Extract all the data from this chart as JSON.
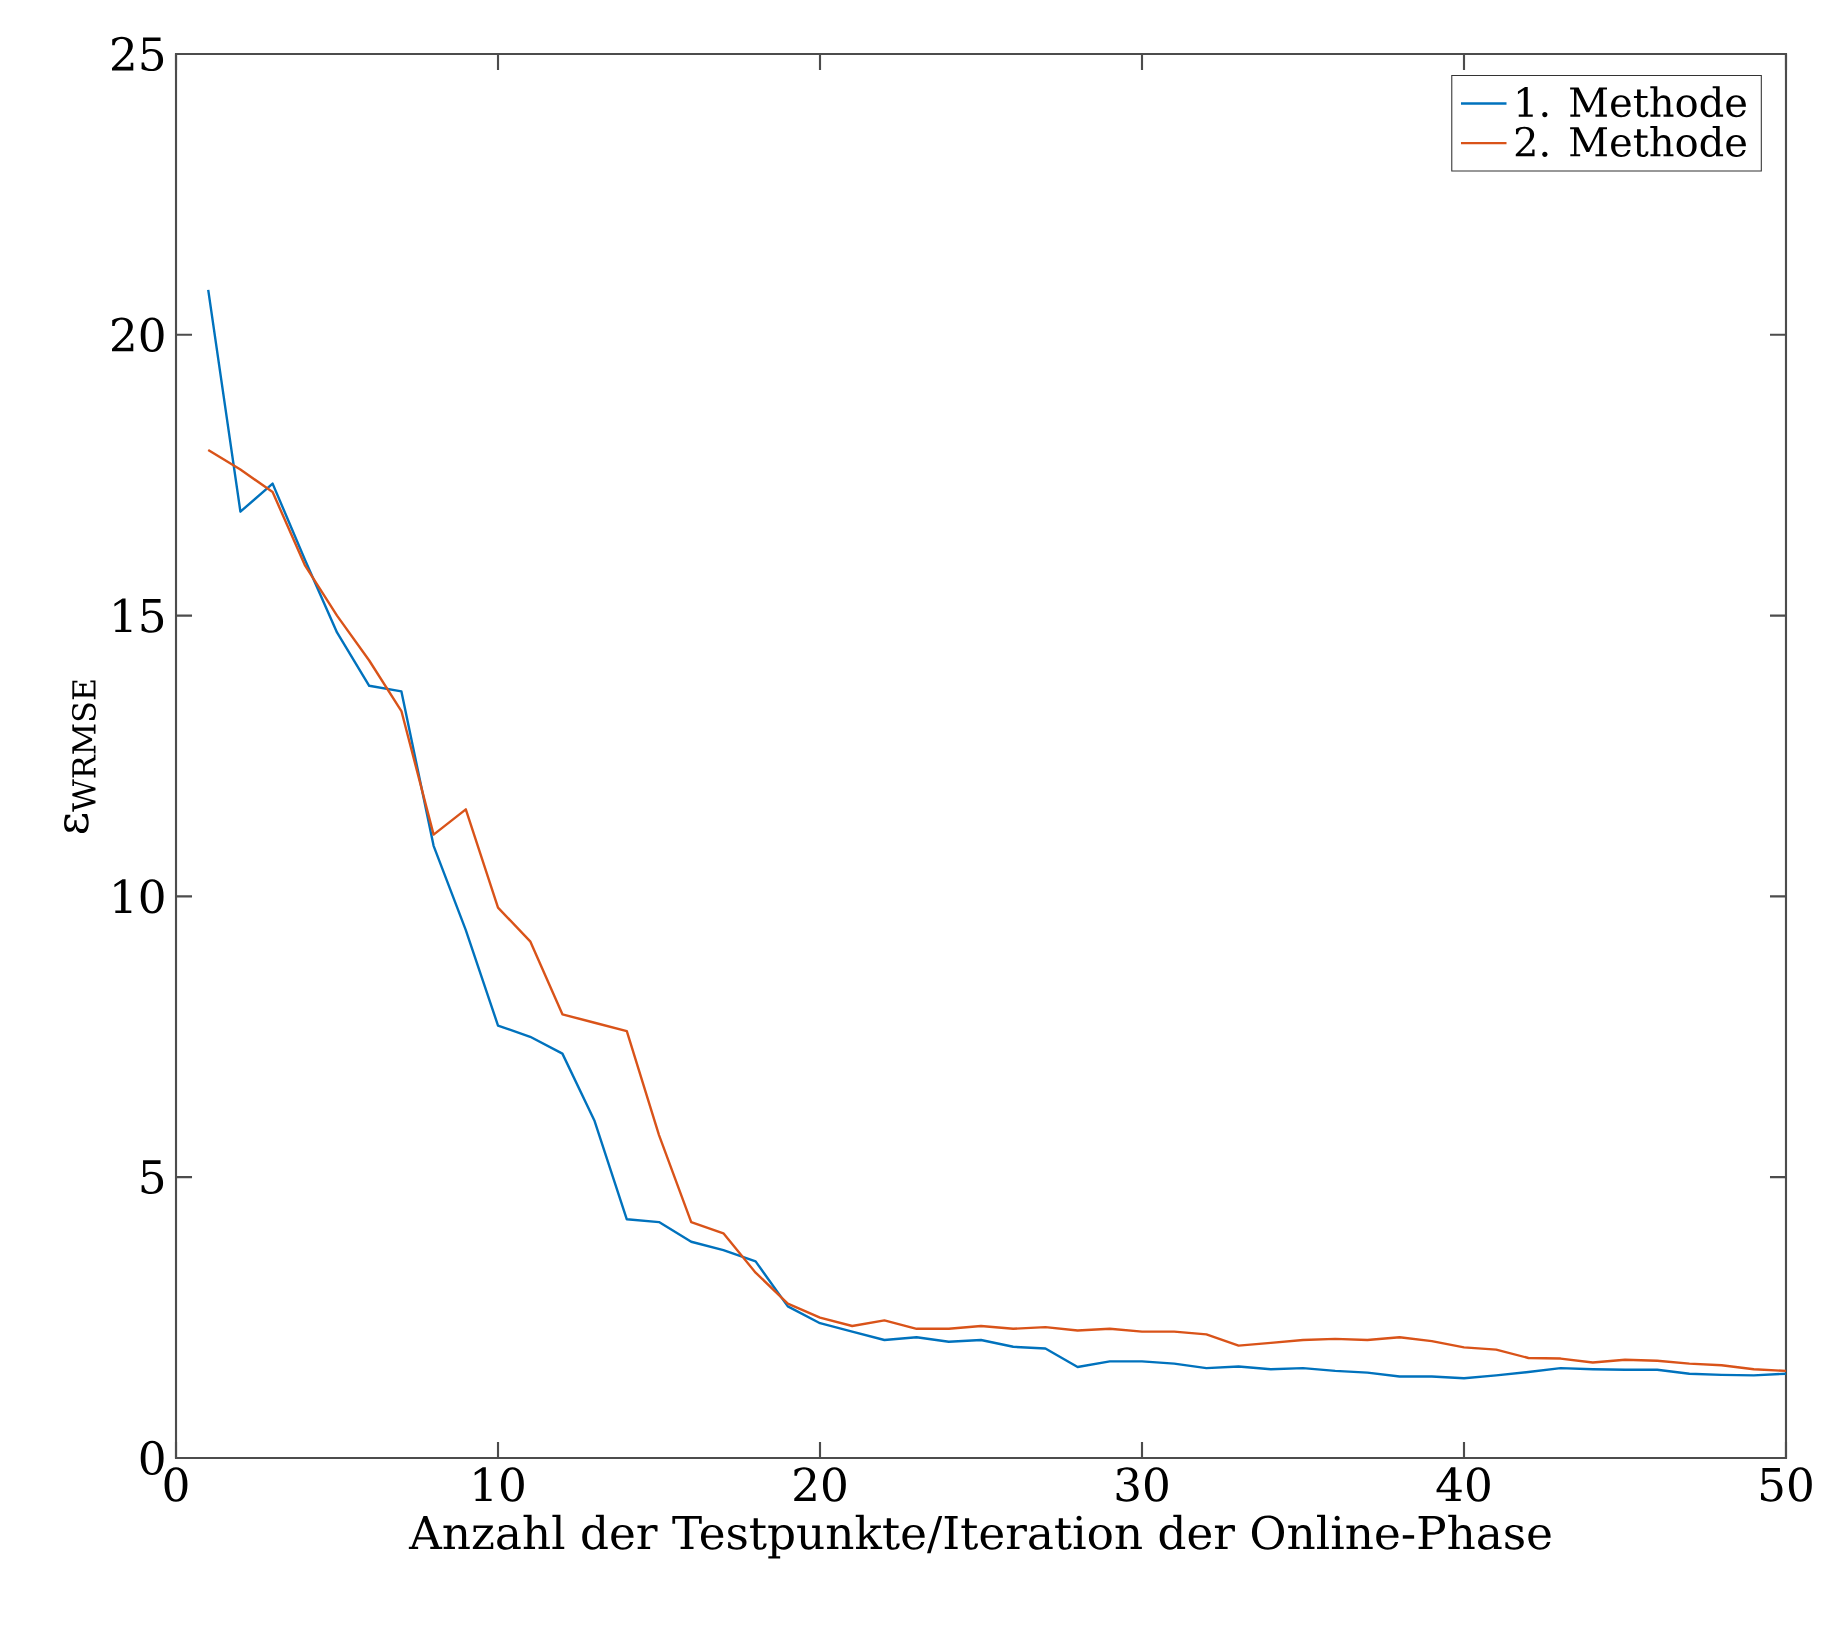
{
  "chart_data": {
    "type": "line",
    "xlabel": "Anzahl der Testpunkte/Iteration der Online-Phase",
    "ylabel": "ε$_{WRMSE}$",
    "x": [
      1,
      2,
      3,
      4,
      5,
      6,
      7,
      8,
      9,
      10,
      11,
      12,
      13,
      14,
      15,
      16,
      17,
      18,
      19,
      20,
      21,
      22,
      23,
      24,
      25,
      26,
      27,
      28,
      29,
      30,
      31,
      32,
      33,
      34,
      35,
      36,
      37,
      38,
      39,
      40,
      41,
      42,
      43,
      44,
      45,
      46,
      47,
      48,
      49,
      50
    ],
    "series": [
      {
        "name": "1. Methode",
        "color": "#0072bd",
        "values": [
          20.8,
          16.85,
          17.35,
          16.0,
          14.7,
          13.75,
          13.65,
          10.9,
          9.4,
          7.7,
          7.5,
          7.2,
          6.0,
          4.25,
          4.2,
          3.85,
          3.7,
          3.5,
          2.7,
          2.4,
          2.25,
          2.1,
          2.15,
          2.07,
          2.1,
          1.98,
          1.95,
          1.62,
          1.72,
          1.72,
          1.68,
          1.6,
          1.63,
          1.58,
          1.6,
          1.55,
          1.52,
          1.45,
          1.45,
          1.42,
          1.47,
          1.53,
          1.6,
          1.58,
          1.57,
          1.57,
          1.5,
          1.48,
          1.47,
          1.5
        ]
      },
      {
        "name": "2. Methode",
        "color": "#d95319",
        "values": [
          17.95,
          17.6,
          17.2,
          15.9,
          15.0,
          14.2,
          13.3,
          11.1,
          11.55,
          9.8,
          9.2,
          7.9,
          7.75,
          7.6,
          5.75,
          4.2,
          4.0,
          3.3,
          2.75,
          2.5,
          2.35,
          2.45,
          2.3,
          2.3,
          2.35,
          2.3,
          2.33,
          2.27,
          2.3,
          2.25,
          2.25,
          2.2,
          2.0,
          2.05,
          2.1,
          2.12,
          2.1,
          2.15,
          2.08,
          1.97,
          1.93,
          1.78,
          1.77,
          1.7,
          1.75,
          1.73,
          1.68,
          1.65,
          1.58,
          1.55
        ]
      }
    ],
    "xlim": [
      0,
      50
    ],
    "xticks": [
      0,
      10,
      20,
      30,
      40,
      50
    ],
    "ylim": [
      0,
      25
    ],
    "yticks": [
      0,
      5,
      10,
      15,
      20,
      25
    ],
    "grid": false,
    "legend": "top right",
    "marker": "none",
    "line_style": "solid"
  }
}
